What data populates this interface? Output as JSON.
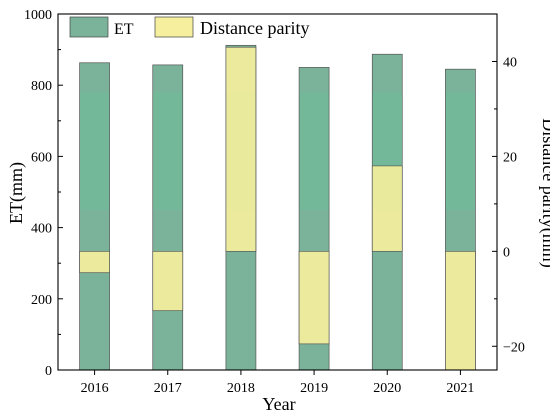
{
  "chart_data": {
    "type": "bar",
    "categories": [
      "2016",
      "2017",
      "2018",
      "2019",
      "2020",
      "2021"
    ],
    "series": [
      {
        "name": "ET",
        "axis": "left",
        "values": [
          863,
          857,
          912,
          850,
          887,
          845
        ]
      },
      {
        "name": "Distance parity",
        "axis": "right",
        "values": [
          -4.5,
          -12.5,
          43,
          -19.5,
          18,
          -25
        ]
      }
    ],
    "xlabel": "Year",
    "ylabel": "ET(mm)",
    "y2label": "Distance parity(mm)",
    "ylim": [
      0,
      1000
    ],
    "y2lim": [
      -25,
      50
    ],
    "yticks": [
      "0",
      "200",
      "400",
      "600",
      "800",
      "1000"
    ],
    "y2ticks": [
      "−20",
      "0",
      "20",
      "40"
    ],
    "colors": {
      "et": "#7ab399",
      "et_band": "#6dbf9b",
      "parity": "#f5ef9e"
    },
    "legend_position": "top-left",
    "grid": false
  }
}
